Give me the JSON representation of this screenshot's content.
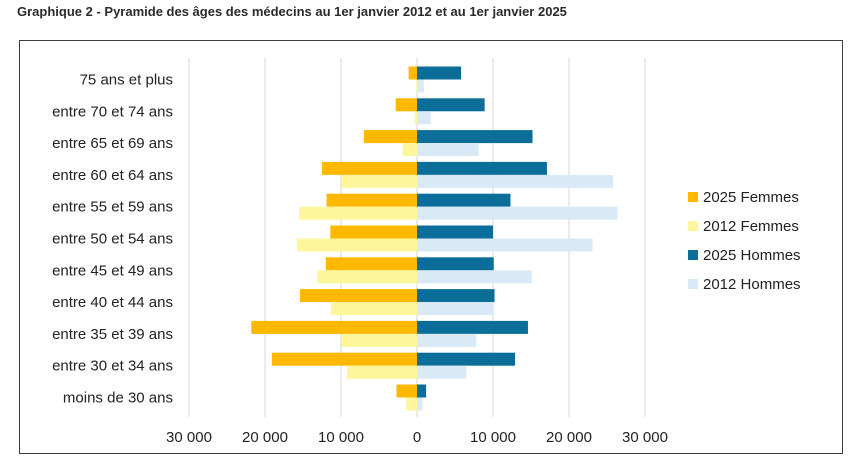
{
  "page_title": "Graphique 2 - Pyramide des âges des médecins au 1er janvier 2012 et au 1er janvier 2025",
  "colors": {
    "femmes_2025": "#FFB800",
    "femmes_2012": "#FFF59A",
    "hommes_2025": "#0B6E98",
    "hommes_2012": "#D9E9F7",
    "grid": "#D4D4D4"
  },
  "chart_data": {
    "type": "bar",
    "orientation": "horizontal",
    "categories": [
      "moins de 30 ans",
      "entre 30 et 34 ans",
      "entre 35 et 39 ans",
      "entre 40 et 44 ans",
      "entre 45 et 49 ans",
      "entre 50 et 54 ans",
      "entre 55 et 59 ans",
      "entre 60 et 64 ans",
      "entre 65 et 69 ans",
      "entre 70 et 74 ans",
      "75 ans et plus"
    ],
    "series": [
      {
        "name": "2025 Femmes",
        "side": "left",
        "values": [
          2700,
          19100,
          21800,
          15400,
          12000,
          11400,
          11900,
          12500,
          7000,
          2800,
          1100
        ]
      },
      {
        "name": "2012 Femmes",
        "side": "left",
        "values": [
          1400,
          9200,
          9900,
          11300,
          13100,
          15800,
          15500,
          9900,
          1900,
          300,
          100
        ]
      },
      {
        "name": "2025 Hommes",
        "side": "right",
        "values": [
          1200,
          12900,
          14600,
          10200,
          10100,
          10000,
          12300,
          17100,
          15200,
          8900,
          5800
        ]
      },
      {
        "name": "2012 Hommes",
        "side": "right",
        "values": [
          700,
          6500,
          7800,
          10100,
          15100,
          23100,
          26400,
          25800,
          8100,
          1800,
          900
        ]
      }
    ],
    "xlim": [
      -30000,
      30000
    ],
    "xticks": [
      "30 000",
      "20 000",
      "10 000",
      "0",
      "10 000",
      "20 000",
      "30 000"
    ],
    "grid": true,
    "legend_position": "right"
  }
}
